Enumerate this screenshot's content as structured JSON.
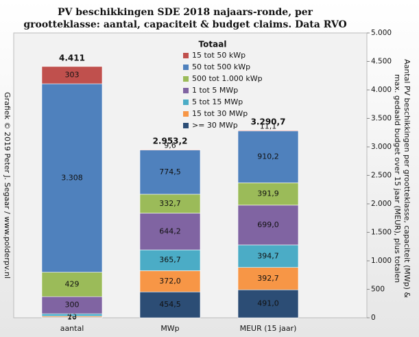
{
  "chart_data": {
    "type": "stacked-bar",
    "title": [
      "PV beschikkingen SDE 2018 najaars-ronde, per",
      "grootteklasse: aantal, capaciteit & budget claims. Data RVO"
    ],
    "y_label": [
      "Aantal PV beschikkingen per grootteklasse, capaciteit (MWp) &",
      "max. gedaald budget over 15 jaar (MEUR), plus totalen"
    ],
    "credit": "Grafiek © 2019 Peter J. Segaar / www.polderpv.nl",
    "legend_title": "Totaal",
    "categories": [
      "aantal",
      "MWp",
      "MEUR (15 jaar)"
    ],
    "series": [
      {
        "name": "15 tot 50 kWp",
        "color": "#c0504d",
        "values": [
          303,
          9.6,
          11.1
        ],
        "value_labels": [
          "303",
          "9,6",
          "11,1"
        ]
      },
      {
        "name": "50 tot 500 kWp",
        "color": "#4f81bd",
        "values": [
          3308,
          774.5,
          910.2
        ],
        "value_labels": [
          "3.308",
          "774,5",
          "910,2"
        ]
      },
      {
        "name": "500 tot 1.000 kWp",
        "color": "#9bbb59",
        "values": [
          429,
          332.7,
          391.9
        ],
        "value_labels": [
          "429",
          "332,7",
          "391,9"
        ]
      },
      {
        "name": "1 tot 5 MWp",
        "color": "#8064a2",
        "values": [
          300,
          644.2,
          699.0
        ],
        "value_labels": [
          "300",
          "644,2",
          "699,0"
        ]
      },
      {
        "name": "5 tot 15 MWp",
        "color": "#4bacc6",
        "values": [
          43,
          365.7,
          394.7
        ],
        "value_labels": [
          "43",
          "365,7",
          "394,7"
        ]
      },
      {
        "name": "15 tot 30 MWp",
        "color": "#f79646",
        "values": [
          18,
          372.0,
          392.7
        ],
        "value_labels": [
          "18",
          "372,0",
          "392,7"
        ]
      },
      {
        "name": ">= 30 MWp",
        "color": "#2c4d75",
        "values": [
          10,
          454.5,
          491.0
        ],
        "value_labels": [
          "10",
          "454,5",
          "491,0"
        ]
      }
    ],
    "totals": {
      "values": [
        4411,
        2953.2,
        3290.7
      ],
      "value_labels": [
        "4.411",
        "2.953,2",
        "3.290,7"
      ]
    },
    "ylim": [
      0,
      5000
    ],
    "yticks": [
      0,
      500,
      {
        "value": 1000,
        "label": "1.000"
      },
      {
        "value": 1500,
        "label": "1.500"
      },
      {
        "value": 2000,
        "label": "2.000"
      },
      {
        "value": 2500,
        "label": "2.500"
      },
      {
        "value": 3000,
        "label": "3.000"
      },
      {
        "value": 3500,
        "label": "3.500"
      },
      {
        "value": 4000,
        "label": "4.000"
      },
      {
        "value": 4500,
        "label": "4.500"
      },
      {
        "value": 5000,
        "label": "5.000"
      }
    ],
    "y_axis_side": "right"
  }
}
